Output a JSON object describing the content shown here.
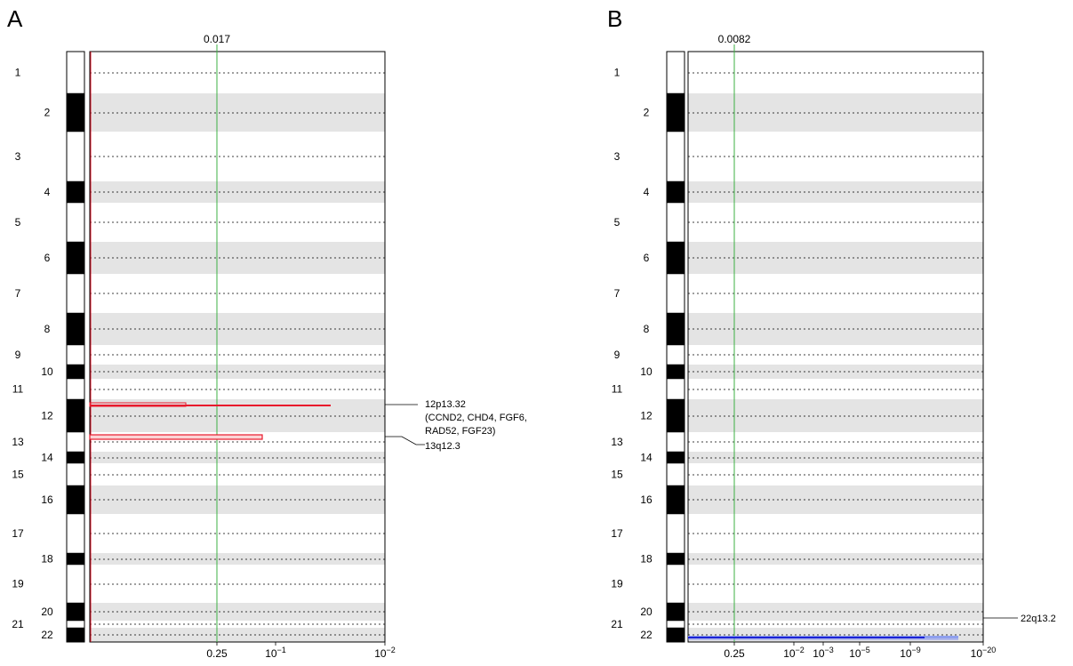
{
  "chart_data": [
    {
      "type": "bar",
      "panel_label": "A",
      "threshold_label": "0.017",
      "x_ticks": [
        "0.25",
        "10-1",
        "10-2"
      ],
      "chromosomes": [
        {
          "label": "1",
          "side": "left"
        },
        {
          "label": "2",
          "side": "right"
        },
        {
          "label": "3",
          "side": "left"
        },
        {
          "label": "4",
          "side": "right"
        },
        {
          "label": "5",
          "side": "left"
        },
        {
          "label": "6",
          "side": "right"
        },
        {
          "label": "7",
          "side": "left"
        },
        {
          "label": "8",
          "side": "right"
        },
        {
          "label": "9",
          "side": "left"
        },
        {
          "label": "10",
          "side": "right"
        },
        {
          "label": "11",
          "side": "left"
        },
        {
          "label": "12",
          "side": "right"
        },
        {
          "label": "13",
          "side": "left"
        },
        {
          "label": "14",
          "side": "right"
        },
        {
          "label": "15",
          "side": "left"
        },
        {
          "label": "16",
          "side": "right"
        },
        {
          "label": "17",
          "side": "left"
        },
        {
          "label": "18",
          "side": "right"
        },
        {
          "label": "19",
          "side": "left"
        },
        {
          "label": "20",
          "side": "right"
        },
        {
          "label": "21",
          "side": "left"
        },
        {
          "label": "22",
          "side": "right"
        }
      ],
      "peaks": [
        {
          "chromosome": "12",
          "label": "12p13.32",
          "genes": [
            "(CCND2, CHD4, FGF6,",
            "RAD52, FGF23)"
          ]
        },
        {
          "chromosome": "13",
          "label": "13q12.3",
          "genes": []
        }
      ],
      "accent_color": "#e8192c"
    },
    {
      "type": "bar",
      "panel_label": "B",
      "threshold_label": "0.0082",
      "x_ticks": [
        "0.25",
        "10-2",
        "10-3",
        "10-5",
        "10-9",
        "10-20"
      ],
      "chromosomes": [
        {
          "label": "1",
          "side": "left"
        },
        {
          "label": "2",
          "side": "right"
        },
        {
          "label": "3",
          "side": "left"
        },
        {
          "label": "4",
          "side": "right"
        },
        {
          "label": "5",
          "side": "left"
        },
        {
          "label": "6",
          "side": "right"
        },
        {
          "label": "7",
          "side": "left"
        },
        {
          "label": "8",
          "side": "right"
        },
        {
          "label": "9",
          "side": "left"
        },
        {
          "label": "10",
          "side": "right"
        },
        {
          "label": "11",
          "side": "left"
        },
        {
          "label": "12",
          "side": "right"
        },
        {
          "label": "13",
          "side": "left"
        },
        {
          "label": "14",
          "side": "right"
        },
        {
          "label": "15",
          "side": "left"
        },
        {
          "label": "16",
          "side": "right"
        },
        {
          "label": "17",
          "side": "left"
        },
        {
          "label": "18",
          "side": "right"
        },
        {
          "label": "19",
          "side": "left"
        },
        {
          "label": "20",
          "side": "right"
        },
        {
          "label": "21",
          "side": "left"
        },
        {
          "label": "22",
          "side": "right"
        }
      ],
      "peaks": [
        {
          "chromosome": "22",
          "label": "22q13.2",
          "genes": []
        }
      ],
      "accent_color": "#1a22d6"
    }
  ]
}
